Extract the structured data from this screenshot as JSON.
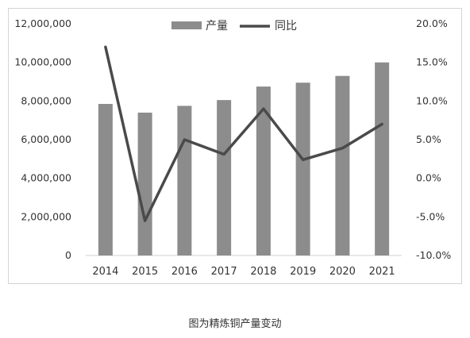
{
  "caption": "图为精炼铜产量变动",
  "chart_data": {
    "type": "bar+line",
    "categories": [
      "2014",
      "2015",
      "2016",
      "2017",
      "2018",
      "2019",
      "2020",
      "2021"
    ],
    "series": [
      {
        "name": "产量",
        "type": "bar",
        "axis": "left",
        "color": "#8c8c8c",
        "values": [
          7850000,
          7400000,
          7750000,
          8050000,
          8750000,
          8950000,
          9300000,
          10000000
        ]
      },
      {
        "name": "同比",
        "type": "line",
        "axis": "right",
        "color": "#4a4a4a",
        "values": [
          17.0,
          -5.5,
          5.0,
          3.1,
          9.0,
          2.4,
          3.9,
          7.0
        ]
      }
    ],
    "left_axis": {
      "ylim": [
        0,
        12000000
      ],
      "ticks": [
        "0",
        "2,000,000",
        "4,000,000",
        "6,000,000",
        "8,000,000",
        "10,000,000",
        "12,000,000"
      ]
    },
    "right_axis": {
      "ylim": [
        -10,
        20
      ],
      "ticks": [
        "-10.0%",
        "-5.0%",
        "0.0%",
        "5.0%",
        "10.0%",
        "15.0%",
        "20.0%"
      ]
    },
    "grid": false,
    "legend_position": "top-center"
  }
}
